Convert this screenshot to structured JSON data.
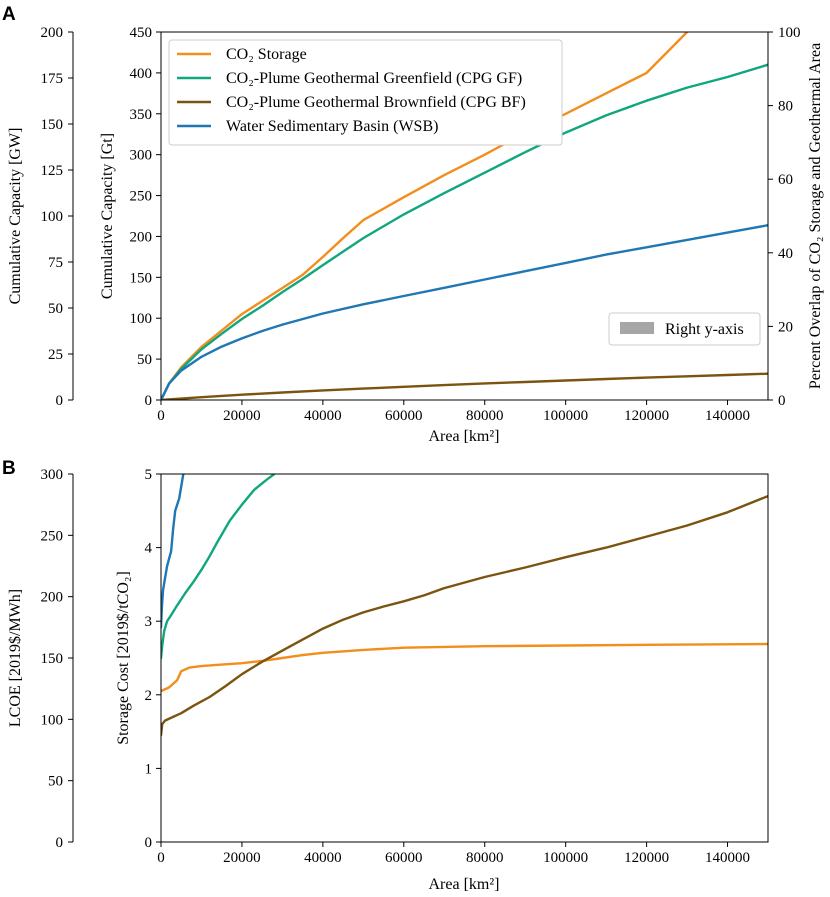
{
  "colors": {
    "co2": "#f28e1c",
    "cpg_gf": "#10a67e",
    "cpg_bf": "#7b5410",
    "wsb": "#1f77b4",
    "right_patch": "#a6a6a6"
  },
  "chart_data": [
    {
      "panel": "A",
      "type": "line",
      "xlabel": "Area [km²]",
      "ylabel_outer": "Cumulative Capacity [GW]",
      "ylabel_inner": "Cumulative Capacity [Gt]",
      "ylabel_right": "Percent Overlap of CO₂ Storage and Geothermal Area",
      "xlim": [
        0,
        150000
      ],
      "ylim_outer": [
        0,
        200
      ],
      "ylim_inner": [
        0,
        450
      ],
      "ylim_right": [
        0,
        100
      ],
      "xticks": [
        "0",
        "20000",
        "40000",
        "60000",
        "80000",
        "100000",
        "120000",
        "140000"
      ],
      "yticks_outer": [
        "0",
        "25",
        "50",
        "75",
        "100",
        "125",
        "150",
        "175",
        "200"
      ],
      "yticks_inner": [
        "0",
        "50",
        "100",
        "150",
        "200",
        "250",
        "300",
        "350",
        "400",
        "450"
      ],
      "yticks_right": [
        "0",
        "20",
        "40",
        "60",
        "80",
        "100"
      ],
      "legend": [
        "CO₂ Storage",
        "CO₂-Plume Geothermal Greenfield (CPG GF)",
        "CO₂-Plume Geothermal Brownfield (CPG BF)",
        "Water Sedimentary Basin (WSB)"
      ],
      "right_legend": "Right y-axis",
      "series": [
        {
          "name": "CO₂ Storage",
          "axis": "inner",
          "color_key": "co2",
          "x": [
            0,
            2000,
            5000,
            10000,
            15000,
            20000,
            25000,
            30000,
            35000,
            40000,
            45000,
            50000,
            60000,
            70000,
            80000,
            90000,
            100000,
            110000,
            120000,
            130000
          ],
          "y": [
            0,
            20,
            40,
            65,
            85,
            105,
            121,
            137,
            153,
            175,
            198,
            220,
            248,
            275,
            300,
            327,
            350,
            375,
            400,
            450
          ]
        },
        {
          "name": "CO₂-Plume Geothermal Greenfield (CPG GF)",
          "axis": "inner",
          "color_key": "cpg_gf",
          "x": [
            0,
            2000,
            5000,
            10000,
            15000,
            20000,
            25000,
            30000,
            35000,
            40000,
            50000,
            60000,
            70000,
            80000,
            90000,
            100000,
            110000,
            120000,
            130000,
            140000,
            150000
          ],
          "y": [
            0,
            20,
            38,
            62,
            81,
            99,
            115,
            132,
            148,
            165,
            198,
            227,
            253,
            278,
            303,
            327,
            348,
            366,
            382,
            395,
            410
          ]
        },
        {
          "name": "CO₂-Plume Geothermal Brownfield (CPG BF)",
          "axis": "outer",
          "color_key": "cpg_bf",
          "x": [
            0,
            10000,
            20000,
            30000,
            40000,
            50000,
            60000,
            70000,
            80000,
            90000,
            100000,
            110000,
            120000,
            130000,
            140000,
            150000
          ],
          "y": [
            0,
            1.5,
            2.9,
            4.1,
            5.2,
            6.2,
            7.2,
            8.1,
            9.0,
            9.8,
            10.6,
            11.4,
            12.2,
            12.9,
            13.6,
            14.3
          ]
        },
        {
          "name": "Water Sedimentary Basin (WSB)",
          "axis": "outer",
          "color_key": "wsb",
          "x": [
            0,
            2000,
            5000,
            10000,
            15000,
            20000,
            25000,
            30000,
            40000,
            50000,
            60000,
            70000,
            80000,
            90000,
            100000,
            110000,
            120000,
            130000,
            140000,
            150000
          ],
          "y": [
            0,
            9,
            16,
            23.5,
            29,
            33.5,
            37.5,
            41,
            47,
            52,
            56.5,
            61,
            65.5,
            70,
            74.5,
            79,
            83,
            87,
            91,
            95
          ]
        }
      ]
    },
    {
      "panel": "B",
      "type": "line",
      "xlabel": "Area [km²]",
      "ylabel_outer": "LCOE [2019$/MWh]",
      "ylabel_inner": "Storage Cost [2019$/tCO₂]",
      "xlim": [
        0,
        150000
      ],
      "ylim_outer": [
        0,
        300
      ],
      "ylim_inner": [
        0,
        5
      ],
      "xticks": [
        "0",
        "20000",
        "40000",
        "60000",
        "80000",
        "100000",
        "120000",
        "140000"
      ],
      "yticks_outer": [
        "0",
        "50",
        "100",
        "150",
        "200",
        "250",
        "300"
      ],
      "yticks_inner": [
        "0",
        "1",
        "2",
        "3",
        "4",
        "5"
      ],
      "series": [
        {
          "name": "CO₂ Storage",
          "axis": "inner",
          "color_key": "co2",
          "x": [
            0,
            2000,
            4000,
            5000,
            7000,
            10000,
            15000,
            20000,
            25000,
            30000,
            35000,
            40000,
            50000,
            60000,
            80000,
            100000,
            120000,
            150000
          ],
          "y": [
            2.05,
            2.1,
            2.2,
            2.32,
            2.37,
            2.39,
            2.41,
            2.43,
            2.46,
            2.5,
            2.54,
            2.57,
            2.61,
            2.64,
            2.66,
            2.67,
            2.68,
            2.69
          ]
        },
        {
          "name": "CO₂-Plume Geothermal Greenfield (CPG GF)",
          "axis": "outer",
          "color_key": "cpg_gf",
          "x": [
            0,
            300,
            800,
            1500,
            2500,
            4000,
            6000,
            8000,
            10000,
            12000,
            14000,
            17000,
            20000,
            23000,
            26000,
            28000
          ],
          "y": [
            150,
            160,
            172,
            180,
            185,
            193,
            203,
            212,
            222,
            233,
            245,
            262,
            275,
            287,
            295,
            300
          ]
        },
        {
          "name": "CO₂-Plume Geothermal Brownfield (CPG BF)",
          "axis": "inner",
          "color_key": "cpg_bf",
          "x": [
            0,
            300,
            1000,
            3000,
            5000,
            8000,
            12000,
            16000,
            20000,
            25000,
            30000,
            35000,
            40000,
            45000,
            50000,
            55000,
            60000,
            65000,
            70000,
            80000,
            90000,
            100000,
            110000,
            120000,
            130000,
            140000,
            150000
          ],
          "y": [
            1.45,
            1.6,
            1.65,
            1.7,
            1.75,
            1.85,
            1.97,
            2.12,
            2.28,
            2.45,
            2.6,
            2.75,
            2.9,
            3.02,
            3.12,
            3.2,
            3.27,
            3.35,
            3.45,
            3.6,
            3.73,
            3.87,
            4.0,
            4.15,
            4.3,
            4.48,
            4.7
          ]
        },
        {
          "name": "Water Sedimentary Basin (WSB)",
          "axis": "outer",
          "color_key": "wsb",
          "x": [
            0,
            200,
            500,
            1000,
            1500,
            2500,
            3000,
            3500,
            4500,
            5500
          ],
          "y": [
            175,
            190,
            205,
            215,
            225,
            237,
            255,
            270,
            280,
            300
          ]
        }
      ]
    }
  ]
}
